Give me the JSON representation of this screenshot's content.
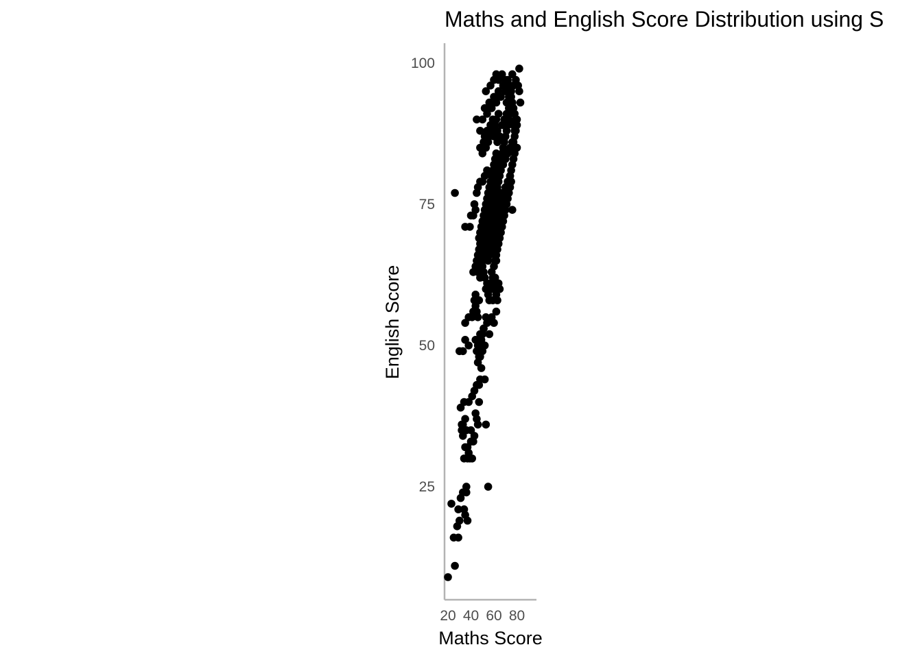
{
  "chart_data": {
    "type": "scatter",
    "title": "Maths and English Score Distribution using S",
    "xlabel": "Maths Score",
    "ylabel": "English Score",
    "xlim": [
      17,
      97
    ],
    "ylim": [
      5,
      103.5
    ],
    "xticks": [
      20,
      40,
      60,
      80
    ],
    "yticks": [
      25,
      50,
      75,
      100
    ],
    "grid": false,
    "colors": {
      "points": "#000000",
      "axis": "#b3b3b3",
      "ticks": "#4d4d4d"
    },
    "points": [
      [
        20,
        9
      ],
      [
        26,
        11
      ],
      [
        23,
        22
      ],
      [
        25,
        16
      ],
      [
        29,
        16
      ],
      [
        28,
        18
      ],
      [
        29,
        21
      ],
      [
        30,
        19
      ],
      [
        31,
        23
      ],
      [
        33,
        24
      ],
      [
        34,
        21
      ],
      [
        35,
        20
      ],
      [
        36,
        25
      ],
      [
        36,
        24
      ],
      [
        37,
        19
      ],
      [
        26,
        77
      ],
      [
        32,
        35
      ],
      [
        32,
        36
      ],
      [
        33,
        34
      ],
      [
        33,
        36
      ],
      [
        34,
        30
      ],
      [
        35,
        32
      ],
      [
        35,
        37
      ],
      [
        36,
        35
      ],
      [
        37,
        32
      ],
      [
        37,
        30
      ],
      [
        38,
        31
      ],
      [
        39,
        30
      ],
      [
        40,
        33
      ],
      [
        40,
        35
      ],
      [
        41,
        30
      ],
      [
        42,
        33
      ],
      [
        43,
        34
      ],
      [
        44,
        38
      ],
      [
        45,
        37
      ],
      [
        46,
        36
      ],
      [
        47,
        40
      ],
      [
        55,
        25
      ],
      [
        31,
        39
      ],
      [
        34,
        40
      ],
      [
        38,
        40
      ],
      [
        41,
        41
      ],
      [
        43,
        42
      ],
      [
        45,
        43
      ],
      [
        47,
        43
      ],
      [
        48,
        44
      ],
      [
        49,
        46
      ],
      [
        53,
        36
      ],
      [
        52,
        44
      ],
      [
        46,
        47
      ],
      [
        48,
        48
      ],
      [
        30,
        49
      ],
      [
        33,
        49
      ],
      [
        35,
        51
      ],
      [
        38,
        50
      ],
      [
        35,
        54
      ],
      [
        38,
        55
      ],
      [
        41,
        55
      ],
      [
        42,
        56
      ],
      [
        43,
        58
      ],
      [
        44,
        57
      ],
      [
        44,
        59
      ],
      [
        45,
        56
      ],
      [
        46,
        55
      ],
      [
        47,
        58
      ],
      [
        48,
        52
      ],
      [
        49,
        51
      ],
      [
        50,
        52
      ],
      [
        51,
        53
      ],
      [
        52,
        50
      ],
      [
        53,
        55
      ],
      [
        44,
        51
      ],
      [
        45,
        49
      ],
      [
        46,
        50
      ],
      [
        47,
        48
      ],
      [
        50,
        49
      ],
      [
        51,
        53
      ],
      [
        54,
        54
      ],
      [
        56,
        52
      ],
      [
        58,
        55
      ],
      [
        60,
        54
      ],
      [
        62,
        56
      ],
      [
        35,
        71
      ],
      [
        39,
        71
      ],
      [
        40,
        73
      ],
      [
        42,
        73
      ],
      [
        43,
        75
      ],
      [
        44,
        74
      ],
      [
        45,
        77
      ],
      [
        46,
        78
      ],
      [
        48,
        79
      ],
      [
        50,
        79
      ],
      [
        52,
        80
      ],
      [
        54,
        81
      ],
      [
        42,
        63
      ],
      [
        44,
        64
      ],
      [
        45,
        65
      ],
      [
        46,
        63
      ],
      [
        47,
        64
      ],
      [
        48,
        62
      ],
      [
        50,
        64
      ],
      [
        51,
        63
      ],
      [
        52,
        62
      ],
      [
        53,
        60
      ],
      [
        54,
        61
      ],
      [
        55,
        59
      ],
      [
        56,
        58
      ],
      [
        57,
        61
      ],
      [
        58,
        60
      ],
      [
        59,
        58
      ],
      [
        60,
        60
      ],
      [
        61,
        62
      ],
      [
        46,
        66
      ],
      [
        47,
        67
      ],
      [
        48,
        68
      ],
      [
        49,
        69
      ],
      [
        50,
        70
      ],
      [
        51,
        71
      ],
      [
        52,
        72
      ],
      [
        53,
        73
      ],
      [
        54,
        74
      ],
      [
        55,
        75
      ],
      [
        56,
        76
      ],
      [
        57,
        77
      ],
      [
        58,
        78
      ],
      [
        59,
        79
      ],
      [
        60,
        80
      ],
      [
        61,
        81
      ],
      [
        47,
        69
      ],
      [
        48,
        70
      ],
      [
        49,
        71
      ],
      [
        50,
        72
      ],
      [
        51,
        73
      ],
      [
        52,
        74
      ],
      [
        53,
        75
      ],
      [
        54,
        76
      ],
      [
        55,
        77
      ],
      [
        56,
        78
      ],
      [
        57,
        79
      ],
      [
        58,
        80
      ],
      [
        59,
        81
      ],
      [
        60,
        82
      ],
      [
        61,
        83
      ],
      [
        62,
        84
      ],
      [
        50,
        65
      ],
      [
        51,
        66
      ],
      [
        52,
        67
      ],
      [
        53,
        68
      ],
      [
        54,
        69
      ],
      [
        55,
        70
      ],
      [
        56,
        71
      ],
      [
        57,
        72
      ],
      [
        58,
        73
      ],
      [
        59,
        74
      ],
      [
        60,
        75
      ],
      [
        61,
        76
      ],
      [
        62,
        77
      ],
      [
        63,
        78
      ],
      [
        64,
        79
      ],
      [
        65,
        80
      ],
      [
        52,
        66
      ],
      [
        53,
        67
      ],
      [
        54,
        68
      ],
      [
        55,
        65
      ],
      [
        56,
        66
      ],
      [
        57,
        67
      ],
      [
        58,
        68
      ],
      [
        59,
        69
      ],
      [
        60,
        70
      ],
      [
        61,
        71
      ],
      [
        62,
        72
      ],
      [
        63,
        73
      ],
      [
        64,
        74
      ],
      [
        65,
        75
      ],
      [
        66,
        76
      ],
      [
        67,
        77
      ],
      [
        48,
        85
      ],
      [
        50,
        84
      ],
      [
        51,
        86
      ],
      [
        52,
        87
      ],
      [
        53,
        85
      ],
      [
        54,
        88
      ],
      [
        55,
        86
      ],
      [
        56,
        87
      ],
      [
        57,
        89
      ],
      [
        58,
        88
      ],
      [
        59,
        90
      ],
      [
        60,
        87
      ],
      [
        61,
        89
      ],
      [
        62,
        90
      ],
      [
        63,
        88
      ],
      [
        64,
        91
      ],
      [
        45,
        90
      ],
      [
        48,
        88
      ],
      [
        50,
        90
      ],
      [
        52,
        92
      ],
      [
        54,
        91
      ],
      [
        56,
        93
      ],
      [
        58,
        92
      ],
      [
        60,
        94
      ],
      [
        62,
        93
      ],
      [
        64,
        95
      ],
      [
        66,
        94
      ],
      [
        68,
        96
      ],
      [
        70,
        95
      ],
      [
        72,
        97
      ],
      [
        74,
        96
      ],
      [
        76,
        98
      ],
      [
        53,
        95
      ],
      [
        57,
        96
      ],
      [
        60,
        97
      ],
      [
        62,
        98
      ],
      [
        64,
        97
      ],
      [
        67,
        98
      ],
      [
        70,
        97
      ],
      [
        72,
        96
      ],
      [
        74,
        95
      ],
      [
        75,
        94
      ],
      [
        76,
        93
      ],
      [
        77,
        92
      ],
      [
        78,
        91
      ],
      [
        79,
        90
      ],
      [
        80,
        89
      ],
      [
        82,
        99
      ],
      [
        65,
        82
      ],
      [
        66,
        83
      ],
      [
        67,
        84
      ],
      [
        68,
        85
      ],
      [
        69,
        86
      ],
      [
        70,
        87
      ],
      [
        71,
        88
      ],
      [
        72,
        89
      ],
      [
        73,
        90
      ],
      [
        74,
        91
      ],
      [
        75,
        92
      ],
      [
        76,
        85
      ],
      [
        77,
        86
      ],
      [
        78,
        87
      ],
      [
        79,
        88
      ],
      [
        80,
        90
      ],
      [
        63,
        69
      ],
      [
        64,
        70
      ],
      [
        65,
        71
      ],
      [
        66,
        72
      ],
      [
        67,
        73
      ],
      [
        68,
        74
      ],
      [
        69,
        75
      ],
      [
        70,
        76
      ],
      [
        71,
        77
      ],
      [
        72,
        78
      ],
      [
        73,
        79
      ],
      [
        74,
        80
      ],
      [
        75,
        81
      ],
      [
        76,
        82
      ],
      [
        77,
        83
      ],
      [
        78,
        84
      ],
      [
        60,
        64
      ],
      [
        61,
        65
      ],
      [
        62,
        66
      ],
      [
        63,
        67
      ],
      [
        64,
        68
      ],
      [
        65,
        69
      ],
      [
        66,
        70
      ],
      [
        67,
        71
      ],
      [
        68,
        72
      ],
      [
        69,
        73
      ],
      [
        70,
        74
      ],
      [
        71,
        75
      ],
      [
        72,
        76
      ],
      [
        73,
        77
      ],
      [
        74,
        78
      ],
      [
        75,
        79
      ],
      [
        58,
        63
      ],
      [
        59,
        62
      ],
      [
        60,
        61
      ],
      [
        61,
        60
      ],
      [
        62,
        59
      ],
      [
        63,
        58
      ],
      [
        64,
        61
      ],
      [
        65,
        60
      ],
      [
        63,
        86
      ],
      [
        65,
        87
      ],
      [
        67,
        89
      ],
      [
        69,
        90
      ],
      [
        71,
        91
      ],
      [
        73,
        92
      ],
      [
        75,
        93
      ],
      [
        77,
        89
      ],
      [
        66,
        81
      ],
      [
        68,
        82
      ],
      [
        70,
        83
      ],
      [
        72,
        84
      ],
      [
        74,
        85
      ],
      [
        76,
        86
      ],
      [
        78,
        88
      ],
      [
        80,
        85
      ],
      [
        62,
        74
      ],
      [
        64,
        75
      ],
      [
        66,
        76
      ],
      [
        68,
        77
      ],
      [
        70,
        78
      ],
      [
        72,
        79
      ],
      [
        74,
        80
      ],
      [
        76,
        74
      ],
      [
        55,
        71
      ],
      [
        56,
        69
      ],
      [
        57,
        70
      ],
      [
        58,
        71
      ],
      [
        59,
        68
      ],
      [
        60,
        67
      ],
      [
        61,
        66
      ],
      [
        62,
        65
      ],
      [
        71,
        93
      ],
      [
        73,
        94
      ],
      [
        75,
        95
      ],
      [
        77,
        96
      ],
      [
        79,
        97
      ],
      [
        81,
        96
      ],
      [
        82,
        95
      ],
      [
        83,
        93
      ]
    ]
  }
}
